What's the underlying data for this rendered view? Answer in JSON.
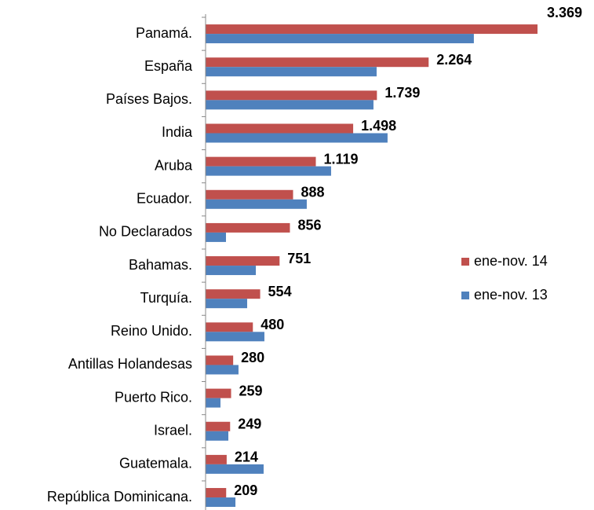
{
  "chart_data": {
    "type": "bar",
    "orientation": "horizontal",
    "categories": [
      "Panamá.",
      "España",
      "Países Bajos.",
      "India",
      "Aruba",
      "Ecuador.",
      "No Declarados",
      "Bahamas.",
      "Turquía.",
      "Reino Unido.",
      "Antillas Holandesas",
      "Puerto Rico.",
      "Israel.",
      "Guatemala.",
      "República Dominicana."
    ],
    "series": [
      {
        "name": "ene-nov. 14",
        "color": "#c0504d",
        "values": [
          3369,
          2264,
          1739,
          1498,
          1119,
          888,
          856,
          751,
          554,
          480,
          280,
          259,
          249,
          214,
          209
        ],
        "value_labels": [
          "3.369",
          "2.264",
          "1.739",
          "1.498",
          "1.119",
          "888",
          "856",
          "751",
          "554",
          "480",
          "280",
          "259",
          "249",
          "214",
          "209"
        ]
      },
      {
        "name": "ene-nov. 13",
        "color": "#4f81bd",
        "values": [
          2723,
          1736,
          1704,
          1847,
          1274,
          1027,
          207,
          510,
          422,
          597,
          334,
          151,
          231,
          589,
          303
        ]
      }
    ],
    "xlim": [
      0,
      3600
    ],
    "legend": "right"
  }
}
